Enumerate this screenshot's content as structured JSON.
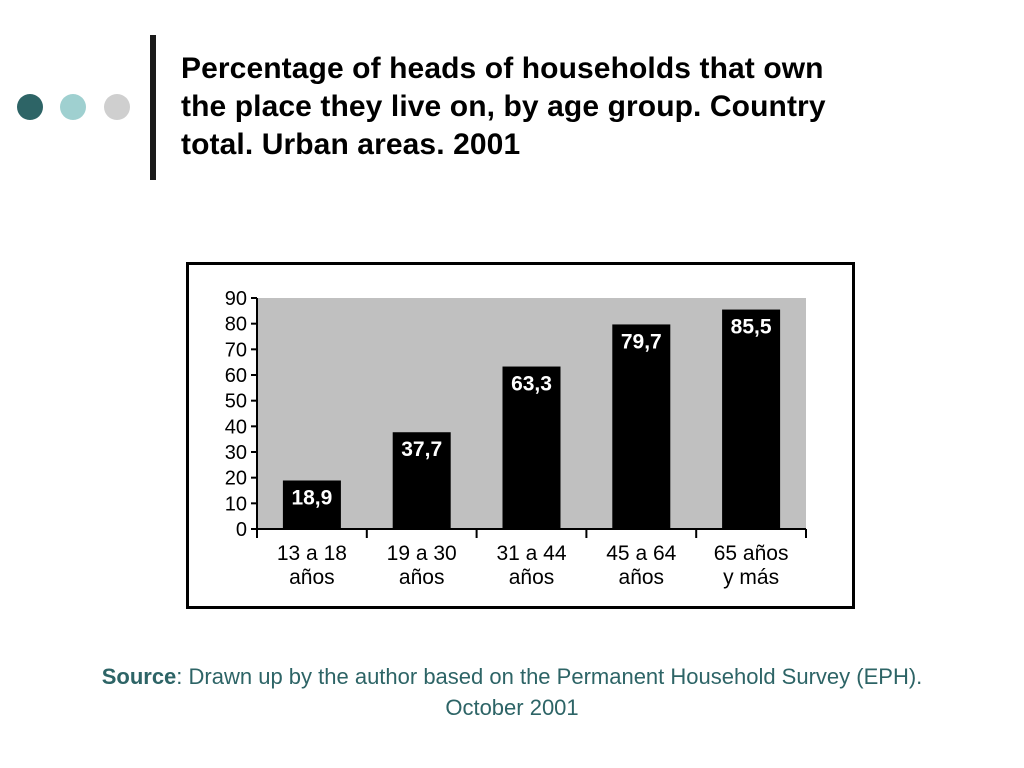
{
  "decor": {
    "dot_colors": [
      "#2d6466",
      "#9fd0d0",
      "#cfcfcf"
    ]
  },
  "title": "Percentage of heads of households that own\nthe place they live on, by age group. Country\ntotal. Urban areas. 2001",
  "chart_data": {
    "type": "bar",
    "categories": [
      "13 a 18\naños",
      "19 a 30\naños",
      "31 a 44\naños",
      "45 a 64\naños",
      "65 años\ny más"
    ],
    "values": [
      18.9,
      37.7,
      63.3,
      79.7,
      85.5
    ],
    "data_labels": [
      "18,9",
      "37,7",
      "63,3",
      "79,7",
      "85,5"
    ],
    "yticks": [
      "0",
      "10",
      "20",
      "30",
      "40",
      "50",
      "60",
      "70",
      "80",
      "90"
    ],
    "ylim": [
      0,
      90
    ],
    "plot_background": "#c0c0c0",
    "bar_color": "#000000",
    "label_color": "#ffffff",
    "grid": false,
    "legend": "none"
  },
  "source": {
    "label": "Source",
    "text": ": Drawn up by the author based on the Permanent Household Survey (EPH).",
    "line2": "October 2001"
  }
}
